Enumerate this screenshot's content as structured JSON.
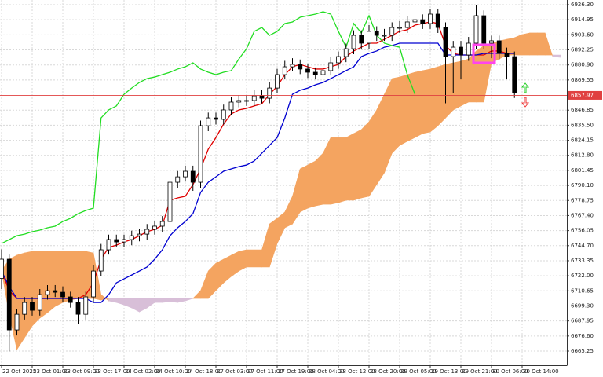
{
  "chart_data": {
    "type": "candlestick",
    "categories": [
      "22 Oct 2025",
      null,
      null,
      null,
      "23 Oct 01:00",
      null,
      null,
      null,
      "23 Oct 09:00",
      null,
      null,
      null,
      "23 Oct 17:00",
      null,
      null,
      null,
      "24 Oct 02:00",
      null,
      null,
      null,
      "24 Oct 10:00",
      null,
      null,
      null,
      "24 Oct 18:00",
      null,
      null,
      null,
      "27 Oct 03:00",
      null,
      null,
      null,
      "27 Oct 11:00",
      null,
      null,
      null,
      "27 Oct 19:00",
      null,
      null,
      null,
      "28 Oct 04:00",
      null,
      null,
      null,
      "28 Oct 12:00",
      null,
      null,
      null,
      "28 Oct 20:00",
      null,
      null,
      null,
      "29 Oct 05:00",
      null,
      null,
      null,
      "29 Oct 13:00",
      null,
      null,
      null,
      "29 Oct 21:00",
      null,
      null,
      null,
      "30 Oct 06:00",
      null,
      null,
      null,
      "30 Oct 14:00",
      null,
      null,
      null,
      null,
      null
    ],
    "open": [
      6720.0,
      6734.5,
      6681.2,
      6693.0,
      6701.9,
      6696.0,
      6707.8,
      6710.8,
      6709.6,
      6706.1,
      6701.9,
      6693.0,
      6706.1,
      6725.6,
      6741.6,
      6749.3,
      6747.5,
      6749.3,
      6752.2,
      6753.4,
      6757.0,
      6759.4,
      6762.9,
      6792.5,
      6796.6,
      6800.8,
      6792.5,
      6835.1,
      6841.0,
      6839.9,
      6847.0,
      6852.9,
      6854.1,
      6854.1,
      6857.6,
      6855.8,
      6863.5,
      6873.6,
      6879.5,
      6881.3,
      6877.8,
      6875.4,
      6873.6,
      6876.6,
      6882.5,
      6887.2,
      6893.1,
      6903.2,
      6897.3,
      6906.2,
      6903.2,
      6903.2,
      6909.1,
      6909.1,
      6913.3,
      6915.0,
      6912.1,
      6919.2,
      6909.1,
      6887.2,
      6894.3,
      6888.4,
      6897.3,
      6918.0,
      6897.3,
      6899.1,
      6889.6,
      6887.2,
      null,
      null,
      null,
      null,
      null,
      null
    ],
    "high": [
      6742,
      6738,
      6697,
      6706,
      6706,
      6712,
      6715,
      6715,
      6714,
      6710,
      6706,
      6710,
      6730,
      6746,
      6753,
      6753,
      6753,
      6756,
      6757,
      6761,
      6763,
      6767,
      6797,
      6801,
      6805,
      6805,
      6839,
      6845,
      6845,
      6851,
      6857,
      6858,
      6858,
      6862,
      6862,
      6868,
      6878,
      6884,
      6886,
      6885,
      6882,
      6879,
      6881,
      6887,
      6891,
      6897,
      6907,
      6907,
      6911,
      6910,
      6908,
      6913,
      6914,
      6918,
      6919,
      6919,
      6923,
      6923,
      6913,
      6899,
      6899,
      6902,
      6926,
      6922,
      6903,
      6903,
      6894,
      6891,
      null,
      null,
      null,
      null,
      null,
      null
    ],
    "low": [
      6712,
      6665,
      6677,
      6689,
      6692,
      6692,
      6704,
      6706,
      6702,
      6698,
      6686,
      6689,
      6702,
      6722,
      6738,
      6744,
      6744,
      6745,
      6748,
      6749,
      6753,
      6755,
      6759,
      6788,
      6793,
      6786,
      6788,
      6831,
      6836,
      6836,
      6843,
      6849,
      6850,
      6850,
      6852,
      6852,
      6860,
      6870,
      6876,
      6874,
      6871,
      6870,
      6870,
      6873,
      6878,
      6883,
      6889,
      6893,
      6893,
      6899,
      6899,
      6899,
      6905,
      6905,
      6909,
      6908,
      6908,
      6905,
      6852,
      6860,
      6870,
      6884,
      6893,
      6893,
      6886,
      6885,
      6870,
      6856,
      null,
      null,
      null,
      null,
      null,
      null
    ],
    "close": [
      6734.5,
      6681.2,
      6693.0,
      6701.9,
      6696.0,
      6707.8,
      6710.8,
      6709.6,
      6706.1,
      6701.9,
      6693.0,
      6706.1,
      6725.6,
      6741.6,
      6749.3,
      6747.5,
      6749.3,
      6752.2,
      6753.4,
      6757.0,
      6759.4,
      6762.9,
      6792.5,
      6796.6,
      6800.8,
      6792.5,
      6835.1,
      6841.0,
      6839.9,
      6847.0,
      6852.9,
      6854.1,
      6854.1,
      6857.6,
      6855.8,
      6863.5,
      6873.6,
      6879.5,
      6881.3,
      6877.8,
      6875.4,
      6873.6,
      6876.6,
      6882.5,
      6887.2,
      6893.1,
      6903.2,
      6897.3,
      6906.2,
      6903.2,
      6903.2,
      6909.1,
      6909.1,
      6913.3,
      6915.0,
      6912.1,
      6919.2,
      6909.1,
      6887.2,
      6894.3,
      6888.4,
      6897.3,
      6918.0,
      6897.3,
      6899.1,
      6889.6,
      6887.2,
      6860.0,
      null,
      null,
      null,
      null,
      null,
      null
    ],
    "up_color": "#ffffff",
    "down_color": "#000000",
    "series": [
      {
        "color": "#e00000",
        "values": [
          6725.6,
          6710.8,
          6704.9,
          6704.9,
          6704.9,
          6704.9,
          6704.9,
          6704.9,
          6704.9,
          6704.9,
          6704.9,
          6707.8,
          6716.7,
          6734.5,
          6743.4,
          6745.1,
          6747.5,
          6749.3,
          6752.2,
          6755.2,
          6757.0,
          6760.0,
          6778.9,
          6780.7,
          6781.9,
          6790.7,
          6802.6,
          6817.4,
          6826.2,
          6836.3,
          6844.0,
          6847.0,
          6848.2,
          6850.0,
          6851.7,
          6858.8,
          6864.7,
          6873.6,
          6879.5,
          6881.3,
          6879.5,
          6877.8,
          6877.8,
          6879.5,
          6881.3,
          6887.2,
          6891.4,
          6894.3,
          6897.3,
          6897.3,
          6900.2,
          6903.2,
          6906.2,
          6907.4,
          6910.9,
          6912.1,
          6913.3,
          6912.1,
          6895.5,
          6889.6,
          6888.4,
          6888.4,
          6888.4,
          6888.4,
          6891.4,
          6891.4,
          6889.6,
          6889.6,
          null,
          null,
          null,
          null,
          null,
          null
        ]
      },
      {
        "color": "#0000d0",
        "values": [
          6725.6,
          6713.8,
          6704.9,
          6704.9,
          6704.9,
          6704.9,
          6704.9,
          6704.9,
          6704.9,
          6704.9,
          6704.9,
          6704.9,
          6701.9,
          6701.9,
          6707.8,
          6716.7,
          6719.7,
          6722.6,
          6725.6,
          6728.6,
          6734.5,
          6741.6,
          6752.2,
          6758.2,
          6762.9,
          6768.8,
          6784.8,
          6792.5,
          6796.6,
          6800.8,
          6802.6,
          6804.3,
          6805.5,
          6808.5,
          6814.4,
          6820.3,
          6826.2,
          6841.0,
          6858.8,
          6861.8,
          6863.5,
          6865.9,
          6867.7,
          6870.6,
          6873.6,
          6876.6,
          6879.5,
          6887.2,
          6889.6,
          6891.4,
          6894.3,
          6895.5,
          6897.3,
          6897.3,
          6897.3,
          6897.3,
          6897.3,
          6897.3,
          6888.4,
          6888.4,
          6888.4,
          6888.4,
          6888.4,
          6889.6,
          6889.6,
          6889.6,
          6889.6,
          6889.6,
          null,
          null,
          null,
          null,
          null,
          null
        ]
      },
      {
        "color": "#22dd22",
        "values": [
          6746.3,
          6749.3,
          6752.2,
          6753.4,
          6755.2,
          6756.4,
          6758.2,
          6759.4,
          6762.9,
          6765.3,
          6768.8,
          6771.2,
          6773.0,
          6841.0,
          6847.0,
          6850.0,
          6858.8,
          6863.5,
          6867.7,
          6870.6,
          6871.8,
          6873.6,
          6875.4,
          6877.8,
          6879.5,
          6882.5,
          6877.8,
          6875.4,
          6873.6,
          6875.4,
          6876.6,
          6885.4,
          6893.1,
          6906.2,
          6909.1,
          6903.2,
          6906.2,
          6912.1,
          6913.3,
          6916.8,
          6918.0,
          6919.2,
          6921.0,
          6919.2,
          6906.2,
          6894.3,
          6912.1,
          6905.0,
          6918.0,
          6903.2,
          6897.3,
          6895.5,
          6894.3,
          6873.6,
          6858.8,
          null,
          null,
          null,
          null,
          null,
          null,
          null,
          null,
          null,
          null,
          null,
          null,
          null,
          null,
          null,
          null,
          null,
          null,
          null
        ]
      }
    ],
    "cloud": {
      "up_color": "#f4a460",
      "down_color": "#d8bfd8",
      "span_a": [
        6725.6,
        6734.5,
        6737.5,
        6739.2,
        6740.4,
        6740.4,
        6740.4,
        6740.4,
        6740.4,
        6740.4,
        6740.4,
        6740.4,
        6739.2,
        6707.8,
        6703.1,
        6701.9,
        6700.1,
        6697.8,
        6694.8,
        6697.8,
        6701.9,
        6701.9,
        6702.5,
        6701.9,
        6703.1,
        6704.9,
        6710.8,
        6725.6,
        6731.5,
        6734.5,
        6737.5,
        6740.4,
        6741.6,
        6741.6,
        6741.6,
        6761.1,
        6765.3,
        6770.0,
        6781.9,
        6802.6,
        6805.5,
        6808.5,
        6814.4,
        6826.2,
        6826.2,
        6826.2,
        6829.2,
        6832.2,
        6838.1,
        6847.0,
        6858.8,
        6870.6,
        6871.8,
        6873.6,
        6875.4,
        6876.6,
        6877.8,
        6879.5,
        6881.3,
        6882.5,
        6883.7,
        6885.4,
        6891.4,
        6895.5,
        6897.3,
        6899.0,
        6900.2,
        6901.4,
        6903.8,
        6905.0,
        6905.0,
        6905.0,
        6887.2,
        6886.6
      ],
      "span_b": [
        6725.6,
        6693.0,
        6666.4,
        6675.3,
        6684.2,
        6690.1,
        6694.2,
        6698.9,
        6701.9,
        6703.7,
        6704.9,
        6704.9,
        6704.9,
        6703.7,
        6704.9,
        6704.9,
        6704.9,
        6704.9,
        6704.9,
        6704.9,
        6704.9,
        6704.9,
        6704.9,
        6704.9,
        6704.9,
        6704.9,
        6704.9,
        6704.9,
        6710.8,
        6716.7,
        6721.5,
        6725.6,
        6728.6,
        6728.6,
        6728.6,
        6728.6,
        6746.3,
        6758.2,
        6761.1,
        6770.0,
        6773.0,
        6774.7,
        6775.9,
        6775.9,
        6777.1,
        6778.9,
        6778.9,
        6780.7,
        6781.9,
        6790.7,
        6799.6,
        6814.4,
        6820.3,
        6823.3,
        6826.2,
        6829.2,
        6830.4,
        6835.1,
        6841.0,
        6847.0,
        6850.0,
        6852.9,
        6852.9,
        6852.9,
        6882.5,
        6885.4,
        6888.4,
        6888.4,
        6888.4,
        6888.4,
        6888.4,
        6888.4,
        6888.4,
        6888.4
      ]
    },
    "current_price": 6857.97,
    "current_price_color": "#e04040",
    "ylim": [
      6654.6,
      6929.85
    ],
    "yticks": [
      {
        "value": 6926.3,
        "label": "6926.30"
      },
      {
        "value": 6914.95,
        "label": "6914.95"
      },
      {
        "value": 6903.6,
        "label": "6903.60"
      },
      {
        "value": 6892.25,
        "label": "6892.25"
      },
      {
        "value": 6880.9,
        "label": "6880.90"
      },
      {
        "value": 6869.55,
        "label": "6869.55"
      },
      {
        "value": 6846.85,
        "label": "6846.85"
      },
      {
        "value": 6835.5,
        "label": "6835.50"
      },
      {
        "value": 6824.15,
        "label": "6824.15"
      },
      {
        "value": 6812.8,
        "label": "6812.80"
      },
      {
        "value": 6801.45,
        "label": "6801.45"
      },
      {
        "value": 6790.1,
        "label": "6790.10"
      },
      {
        "value": 6778.75,
        "label": "6778.75"
      },
      {
        "value": 6767.4,
        "label": "6767.40"
      },
      {
        "value": 6756.05,
        "label": "6756.05"
      },
      {
        "value": 6744.7,
        "label": "6744.70"
      },
      {
        "value": 6733.35,
        "label": "6733.35"
      },
      {
        "value": 6722.0,
        "label": "6722.00"
      },
      {
        "value": 6710.65,
        "label": "6710.65"
      },
      {
        "value": 6699.3,
        "label": "6699.30"
      },
      {
        "value": 6687.95,
        "label": "6687.95"
      },
      {
        "value": 6676.6,
        "label": "6676.60"
      },
      {
        "value": 6665.25,
        "label": "6665.25"
      }
    ],
    "grid": true
  }
}
